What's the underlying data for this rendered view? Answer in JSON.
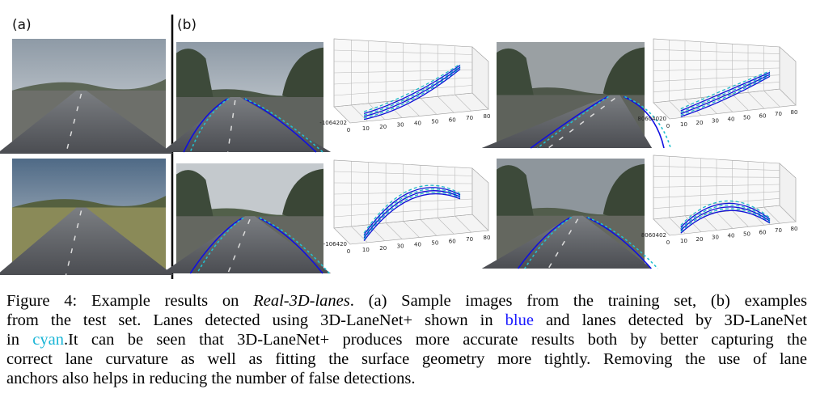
{
  "panel_labels": {
    "a": "(a)",
    "b": "(b)"
  },
  "plots": [
    {
      "x_ticks": [
        0,
        10,
        20,
        30,
        40,
        50,
        60,
        70,
        80
      ],
      "side_label": "-1064202"
    },
    {
      "x_ticks": [
        0,
        10,
        20,
        30,
        40,
        50,
        60,
        70,
        80
      ],
      "side_label": "80604020"
    },
    {
      "x_ticks": [
        0,
        10,
        20,
        30,
        40,
        50,
        60,
        70,
        80
      ],
      "side_label": "-106420"
    },
    {
      "x_ticks": [
        0,
        10,
        20,
        30,
        40,
        50,
        60,
        70,
        80
      ],
      "side_label": "8060402"
    }
  ],
  "caption": {
    "lines": [
      [
        {
          "text": "Figure 4: Example results on "
        },
        {
          "text": "Real-3D-lanes",
          "style": "italic"
        },
        {
          "text": ". (a) Sample images from the training set, (b) examples"
        }
      ],
      [
        {
          "text": "from the test set. Lanes detected using 3D-LaneNet+ shown in "
        },
        {
          "text": "blue",
          "color": "#1a1aff"
        },
        {
          "text": " and lanes detected by 3D-LaneNet"
        }
      ],
      [
        {
          "text": "in "
        },
        {
          "text": "cyan",
          "color": "#19b5d6"
        },
        {
          "text": ".It can be seen that 3D-LaneNet+ produces more accurate results both by better capturing the"
        }
      ],
      [
        {
          "text": "correct lane curvature as well as fitting the surface geometry more tightly. Removing the use of lane"
        }
      ],
      [
        {
          "text": "anchors also helps in reducing the number of false detections."
        }
      ]
    ]
  }
}
